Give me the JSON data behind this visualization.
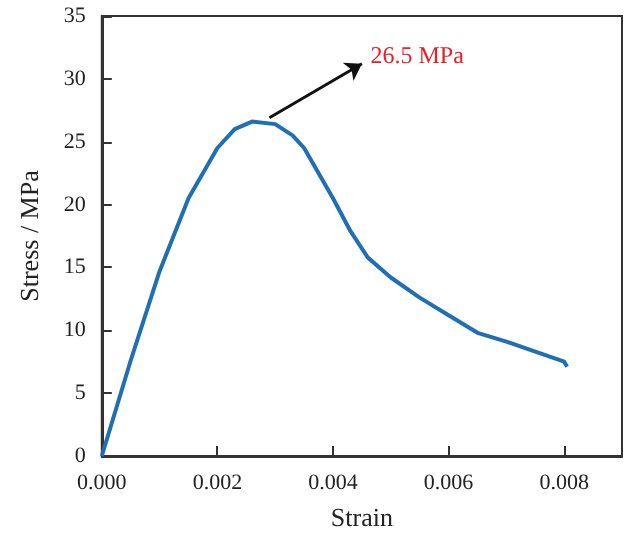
{
  "chart_data": {
    "type": "line",
    "xlabel": "Strain",
    "ylabel": "Stress / MPa",
    "xlim": [
      0,
      0.009
    ],
    "xticks": [
      {
        "value": 0,
        "label": "0.000"
      },
      {
        "value": 0.002,
        "label": "0.002"
      },
      {
        "value": 0.004,
        "label": "0.004"
      },
      {
        "value": 0.006,
        "label": "0.006"
      },
      {
        "value": 0.008,
        "label": "0.008"
      }
    ],
    "ylim": [
      0,
      35
    ],
    "yticks": [
      0,
      5,
      10,
      15,
      20,
      25,
      30,
      35
    ],
    "marker": "none",
    "line_style": "solid",
    "annotations": [
      {
        "text": "26.5 MPa",
        "x": 0.0027,
        "y": 26.5
      }
    ],
    "series": [
      {
        "color": "#1f6fb2",
        "x": [
          0,
          0.0005,
          0.001,
          0.0015,
          0.002,
          0.0023,
          0.0026,
          0.003,
          0.0033,
          0.0035,
          0.004,
          0.0043,
          0.0046,
          0.005,
          0.0055,
          0.006,
          0.0065,
          0.007,
          0.0075,
          0.008,
          0.00805
        ],
        "values": [
          0,
          7.6,
          14.7,
          20.5,
          24.5,
          26,
          26.6,
          26.4,
          25.5,
          24.5,
          20.5,
          17.9,
          15.8,
          14.2,
          12.6,
          11.2,
          9.8,
          9.1,
          8.3,
          7.5,
          7.1
        ]
      }
    ]
  }
}
